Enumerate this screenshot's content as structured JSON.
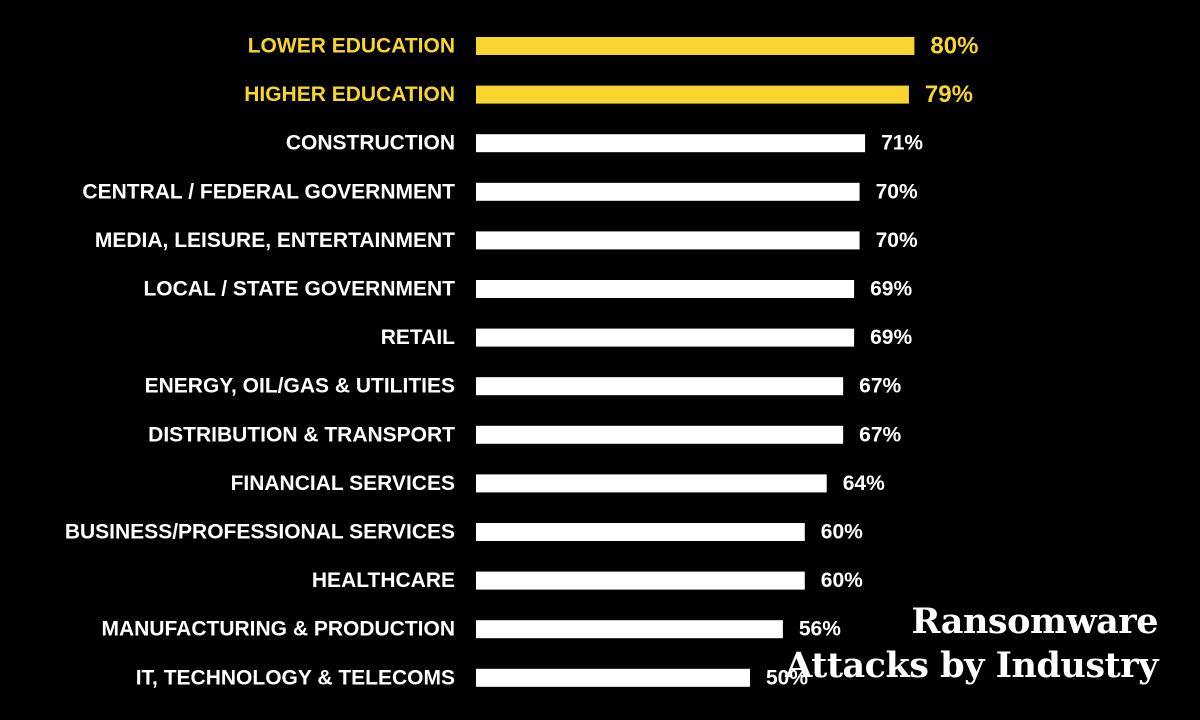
{
  "colors": {
    "background": "#000000",
    "highlight": "#f7d52e",
    "default": "#ffffff"
  },
  "title": {
    "line1": "Ransomware",
    "line2": "Attacks by Industry"
  },
  "chart_data": {
    "type": "bar",
    "orientation": "horizontal",
    "title": "Ransomware Attacks by Industry",
    "xlabel": "",
    "ylabel": "",
    "xlim": [
      0,
      100
    ],
    "grid": false,
    "value_format": "percent",
    "categories": [
      "LOWER EDUCATION",
      "HIGHER EDUCATION",
      "CONSTRUCTION",
      "CENTRAL / FEDERAL GOVERNMENT",
      "MEDIA, LEISURE, ENTERTAINMENT",
      "LOCAL / STATE GOVERNMENT",
      "RETAIL",
      "ENERGY, OIL/GAS & UTILITIES",
      "DISTRIBUTION & TRANSPORT",
      "FINANCIAL SERVICES",
      "BUSINESS/PROFESSIONAL SERVICES",
      "HEALTHCARE",
      "MANUFACTURING & PRODUCTION",
      "IT, TECHNOLOGY & TELECOMS"
    ],
    "values": [
      80,
      79,
      71,
      70,
      70,
      69,
      69,
      67,
      67,
      64,
      60,
      60,
      56,
      50
    ],
    "labels": [
      "80%",
      "79%",
      "71%",
      "70%",
      "70%",
      "69%",
      "69%",
      "67%",
      "67%",
      "64%",
      "60%",
      "60%",
      "56%",
      "50%"
    ],
    "highlighted": [
      true,
      true,
      false,
      false,
      false,
      false,
      false,
      false,
      false,
      false,
      false,
      false,
      false,
      false
    ]
  }
}
